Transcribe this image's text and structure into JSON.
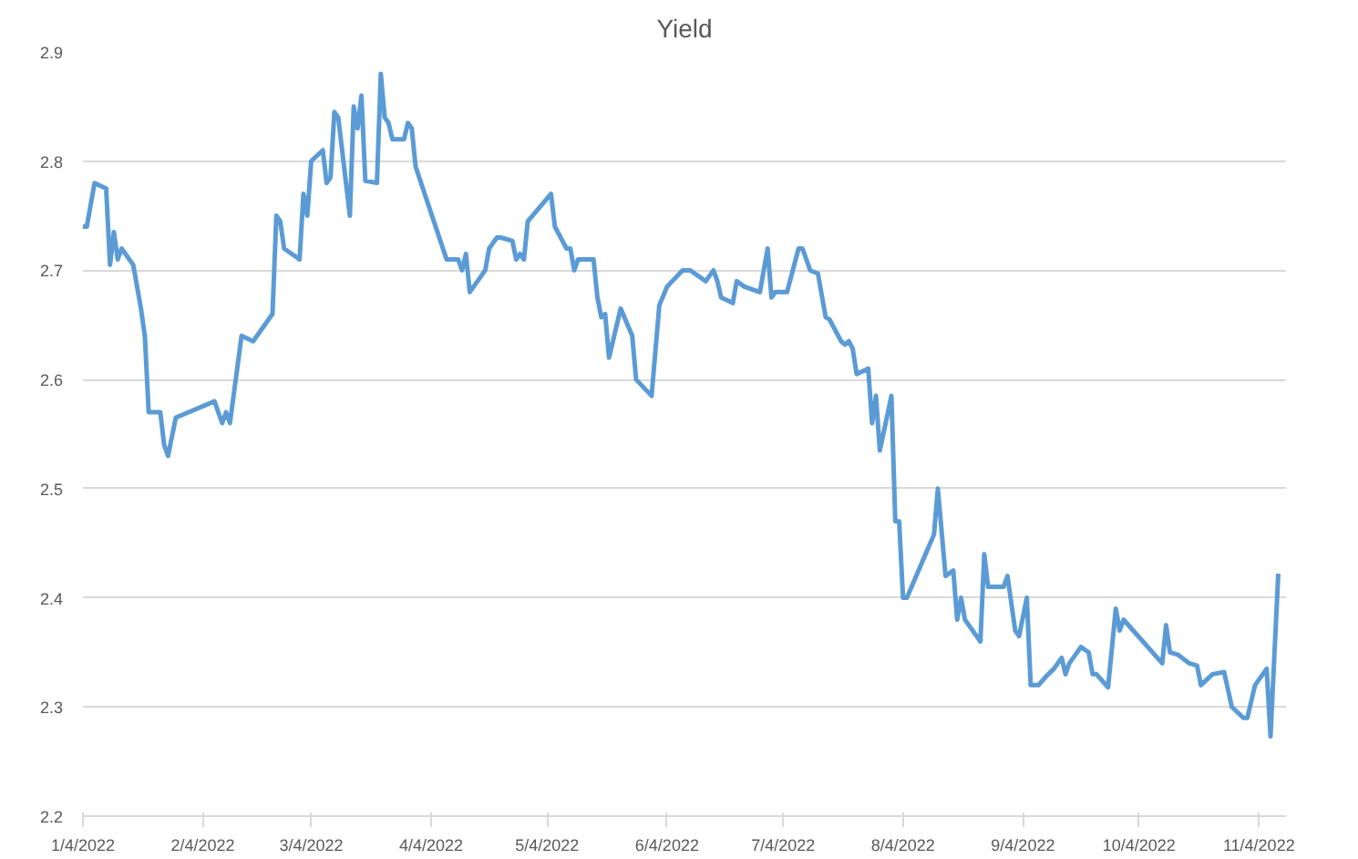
{
  "chart_data": {
    "type": "line",
    "title": "Yield",
    "grid": "y",
    "line_style": "solid",
    "marker": "none",
    "xlim": [
      "2022-01-04",
      "2022-11-11"
    ],
    "xticks": [
      {
        "value": "2022-01-04",
        "label": "1/4/2022"
      },
      {
        "value": "2022-02-04",
        "label": "2/4/2022"
      },
      {
        "value": "2022-03-04",
        "label": "3/4/2022"
      },
      {
        "value": "2022-04-04",
        "label": "4/4/2022"
      },
      {
        "value": "2022-05-04",
        "label": "5/4/2022"
      },
      {
        "value": "2022-06-04",
        "label": "6/4/2022"
      },
      {
        "value": "2022-07-04",
        "label": "7/4/2022"
      },
      {
        "value": "2022-08-04",
        "label": "8/4/2022"
      },
      {
        "value": "2022-09-04",
        "label": "9/4/2022"
      },
      {
        "value": "2022-10-04",
        "label": "10/4/2022"
      },
      {
        "value": "2022-11-04",
        "label": "11/4/2022"
      }
    ],
    "ylim": [
      2.2,
      2.9
    ],
    "yticks": [
      2.2,
      2.3,
      2.4,
      2.5,
      2.6,
      2.7,
      2.8,
      2.9
    ],
    "x": [
      "2022-01-04",
      "2022-01-05",
      "2022-01-07",
      "2022-01-10",
      "2022-01-11",
      "2022-01-12",
      "2022-01-13",
      "2022-01-14",
      "2022-01-17",
      "2022-01-19",
      "2022-01-20",
      "2022-01-21",
      "2022-01-24",
      "2022-01-25",
      "2022-01-26",
      "2022-01-28",
      "2022-02-07",
      "2022-02-09",
      "2022-02-10",
      "2022-02-11",
      "2022-02-14",
      "2022-02-17",
      "2022-02-22",
      "2022-02-23",
      "2022-02-24",
      "2022-02-25",
      "2022-03-01",
      "2022-03-02",
      "2022-03-03",
      "2022-03-04",
      "2022-03-07",
      "2022-03-08",
      "2022-03-09",
      "2022-03-10",
      "2022-03-11",
      "2022-03-14",
      "2022-03-15",
      "2022-03-16",
      "2022-03-17",
      "2022-03-18",
      "2022-03-21",
      "2022-03-22",
      "2022-03-23",
      "2022-03-24",
      "2022-03-25",
      "2022-03-28",
      "2022-03-29",
      "2022-03-30",
      "2022-03-31",
      "2022-04-08",
      "2022-04-11",
      "2022-04-12",
      "2022-04-13",
      "2022-04-14",
      "2022-04-18",
      "2022-04-19",
      "2022-04-21",
      "2022-04-22",
      "2022-04-25",
      "2022-04-26",
      "2022-04-27",
      "2022-04-28",
      "2022-04-29",
      "2022-05-05",
      "2022-05-06",
      "2022-05-09",
      "2022-05-10",
      "2022-05-11",
      "2022-05-12",
      "2022-05-16",
      "2022-05-17",
      "2022-05-18",
      "2022-05-19",
      "2022-05-20",
      "2022-05-23",
      "2022-05-26",
      "2022-05-27",
      "2022-05-31",
      "2022-06-02",
      "2022-06-04",
      "2022-06-08",
      "2022-06-10",
      "2022-06-14",
      "2022-06-16",
      "2022-06-17",
      "2022-06-18",
      "2022-06-21",
      "2022-06-22",
      "2022-06-24",
      "2022-06-28",
      "2022-06-30",
      "2022-07-01",
      "2022-07-02",
      "2022-07-05",
      "2022-07-08",
      "2022-07-09",
      "2022-07-11",
      "2022-07-13",
      "2022-07-15",
      "2022-07-16",
      "2022-07-19",
      "2022-07-20",
      "2022-07-21",
      "2022-07-22",
      "2022-07-23",
      "2022-07-26",
      "2022-07-27",
      "2022-07-28",
      "2022-07-29",
      "2022-08-01",
      "2022-08-02",
      "2022-08-03",
      "2022-08-04",
      "2022-08-05",
      "2022-08-12",
      "2022-08-13",
      "2022-08-15",
      "2022-08-17",
      "2022-08-18",
      "2022-08-19",
      "2022-08-20",
      "2022-08-24",
      "2022-08-25",
      "2022-08-26",
      "2022-08-30",
      "2022-08-31",
      "2022-09-02",
      "2022-09-03",
      "2022-09-05",
      "2022-09-06",
      "2022-09-08",
      "2022-09-10",
      "2022-09-12",
      "2022-09-14",
      "2022-09-15",
      "2022-09-16",
      "2022-09-19",
      "2022-09-21",
      "2022-09-22",
      "2022-09-23",
      "2022-09-26",
      "2022-09-28",
      "2022-09-29",
      "2022-09-30",
      "2022-10-10",
      "2022-10-11",
      "2022-10-12",
      "2022-10-14",
      "2022-10-17",
      "2022-10-19",
      "2022-10-20",
      "2022-10-23",
      "2022-10-26",
      "2022-10-28",
      "2022-10-31",
      "2022-11-01",
      "2022-11-03",
      "2022-11-06",
      "2022-11-07",
      "2022-11-09"
    ],
    "series": [
      {
        "color": "#5b9bd5",
        "values": [
          2.74,
          2.74,
          2.78,
          2.775,
          2.705,
          2.735,
          2.71,
          2.72,
          2.705,
          2.665,
          2.64,
          2.57,
          2.57,
          2.54,
          2.53,
          2.565,
          2.58,
          2.56,
          2.57,
          2.56,
          2.64,
          2.635,
          2.66,
          2.75,
          2.745,
          2.72,
          2.71,
          2.77,
          2.75,
          2.8,
          2.81,
          2.78,
          2.785,
          2.845,
          2.84,
          2.75,
          2.85,
          2.83,
          2.86,
          2.782,
          2.78,
          2.88,
          2.84,
          2.835,
          2.82,
          2.82,
          2.835,
          2.83,
          2.795,
          2.71,
          2.71,
          2.7,
          2.715,
          2.68,
          2.7,
          2.72,
          2.73,
          2.73,
          2.727,
          2.71,
          2.715,
          2.71,
          2.745,
          2.77,
          2.74,
          2.72,
          2.72,
          2.7,
          2.71,
          2.71,
          2.675,
          2.657,
          2.66,
          2.62,
          2.665,
          2.64,
          2.6,
          2.585,
          2.668,
          2.685,
          2.7,
          2.7,
          2.69,
          2.7,
          2.69,
          2.675,
          2.67,
          2.69,
          2.685,
          2.68,
          2.72,
          2.675,
          2.68,
          2.68,
          2.72,
          2.72,
          2.7,
          2.697,
          2.657,
          2.655,
          2.635,
          2.632,
          2.635,
          2.628,
          2.605,
          2.61,
          2.56,
          2.585,
          2.535,
          2.585,
          2.47,
          2.47,
          2.4,
          2.4,
          2.458,
          2.5,
          2.42,
          2.425,
          2.38,
          2.4,
          2.38,
          2.36,
          2.44,
          2.41,
          2.41,
          2.42,
          2.37,
          2.365,
          2.4,
          2.32,
          2.32,
          2.328,
          2.335,
          2.345,
          2.33,
          2.34,
          2.355,
          2.35,
          2.33,
          2.33,
          2.318,
          2.39,
          2.37,
          2.38,
          2.34,
          2.375,
          2.35,
          2.348,
          2.34,
          2.338,
          2.32,
          2.33,
          2.332,
          2.3,
          2.29,
          2.29,
          2.32,
          2.335,
          2.273,
          2.422
        ]
      }
    ]
  }
}
